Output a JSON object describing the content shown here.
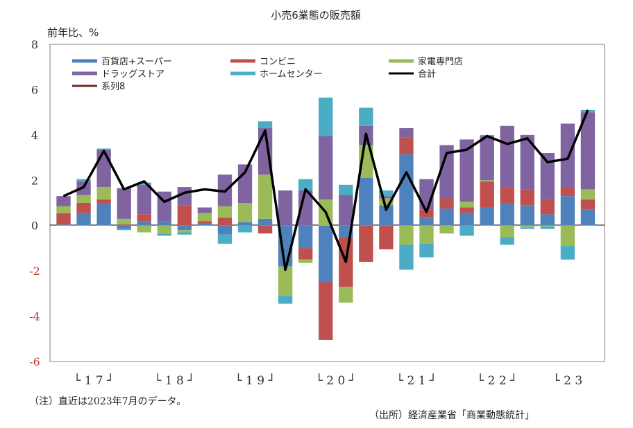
{
  "chart_data": {
    "type": "bar",
    "title": "小売6業態の販売額",
    "ylabel": "前年比、%",
    "ylim": [
      -6,
      8
    ],
    "yticks": [
      8,
      6,
      4,
      2,
      0,
      -2,
      -4,
      -6
    ],
    "year_labels": [
      "└ 1 7 ┘",
      "└ 1 8 ┘",
      "└ 1 9 ┘",
      "└ 2 0 ┘",
      "└ 2 1 ┘",
      "└ 2 2 ┘",
      "└ 2 3"
    ],
    "note": "（注）直近は2023年7月のデータ。",
    "source": "（出所）経済産業省「商業動態統計」",
    "categories": [
      "17Q1",
      "17Q2",
      "17Q3",
      "17Q4",
      "18Q1",
      "18Q2",
      "18Q3",
      "18Q4",
      "19Q1",
      "19Q2",
      "19Q3",
      "19Q4",
      "20Q1",
      "20Q2",
      "20Q3",
      "20Q4",
      "21Q1",
      "21Q2",
      "21Q3",
      "21Q4",
      "22Q1",
      "22Q2",
      "22Q3",
      "22Q4",
      "23Q1",
      "23Q2",
      "23Q3"
    ],
    "series": [
      {
        "name": "百貨店+スーパー",
        "color": "#4f81bd",
        "values": [
          0.05,
          0.55,
          0.95,
          -0.15,
          0.2,
          0.2,
          -0.2,
          0.1,
          -0.4,
          0.15,
          0.3,
          -1.8,
          -1.0,
          -2.5,
          -0.5,
          2.1,
          0.9,
          3.15,
          0.35,
          0.75,
          0.55,
          0.8,
          1.0,
          0.9,
          0.5,
          1.3,
          0.7
        ]
      },
      {
        "name": "コンビニ",
        "color": "#c0504d",
        "values": [
          0.5,
          0.45,
          0.2,
          0.05,
          0.3,
          0.0,
          0.9,
          0.1,
          0.35,
          0.0,
          -0.35,
          0.0,
          -0.5,
          -2.55,
          -2.2,
          -1.6,
          -1.05,
          0.75,
          0.35,
          0.45,
          0.25,
          1.15,
          0.7,
          0.7,
          0.65,
          0.4,
          0.45
        ]
      },
      {
        "name": "家電専門店",
        "color": "#9bbb59",
        "values": [
          0.3,
          0.35,
          0.55,
          0.25,
          -0.3,
          -0.35,
          -0.1,
          0.35,
          0.5,
          0.85,
          1.95,
          -1.3,
          -0.15,
          1.15,
          -0.7,
          1.45,
          0.3,
          -0.85,
          -0.8,
          -0.35,
          0.25,
          0.05,
          -0.5,
          -0.1,
          -0.05,
          -0.9,
          0.45
        ]
      },
      {
        "name": "ドラッグストア",
        "color": "#8064a2",
        "values": [
          0.45,
          0.6,
          1.65,
          1.35,
          1.3,
          1.3,
          0.8,
          0.25,
          1.4,
          1.7,
          2.05,
          1.55,
          1.55,
          2.8,
          1.35,
          0.85,
          0.1,
          0.4,
          1.35,
          2.35,
          2.75,
          1.95,
          2.7,
          2.4,
          2.05,
          2.8,
          3.4
        ]
      },
      {
        "name": "ホームセンター",
        "color": "#4bacc6",
        "values": [
          0.0,
          0.1,
          0.05,
          -0.05,
          0.1,
          -0.1,
          -0.1,
          0.0,
          -0.4,
          -0.3,
          0.3,
          -0.35,
          0.5,
          1.7,
          0.45,
          0.8,
          0.25,
          -1.1,
          -0.6,
          0.0,
          -0.45,
          0.05,
          -0.35,
          -0.05,
          -0.1,
          -0.6,
          0.1
        ]
      }
    ],
    "total": {
      "name": "合計",
      "color": "#000000",
      "values": [
        1.3,
        1.7,
        3.3,
        1.6,
        1.95,
        1.05,
        1.45,
        1.6,
        1.5,
        2.35,
        4.2,
        -1.95,
        1.6,
        0.6,
        -1.6,
        4.05,
        0.7,
        2.35,
        0.6,
        3.2,
        3.35,
        3.95,
        3.6,
        3.85,
        2.8,
        2.95,
        5.1
      ]
    },
    "extra_legend": {
      "name": "系列8",
      "color": "#6b2b2b"
    }
  }
}
